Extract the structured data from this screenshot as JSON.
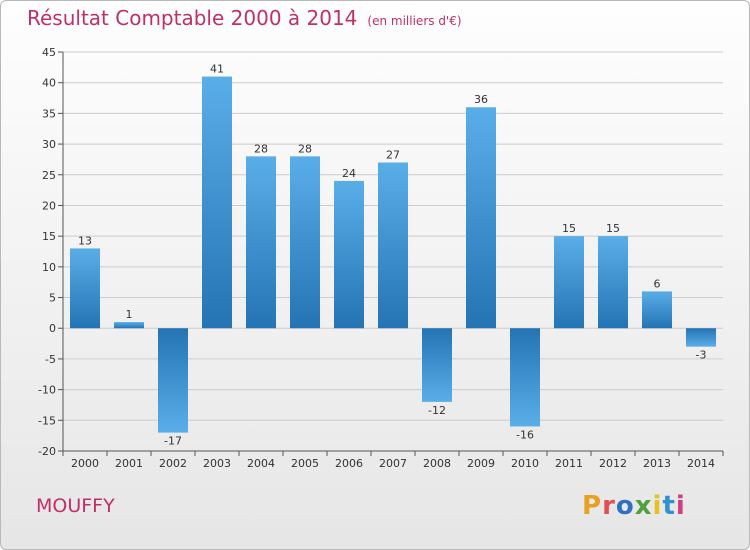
{
  "header": {
    "title": "Résultat Comptable 2000 à 2014",
    "unit": "(en milliers d'€)"
  },
  "footer": {
    "place": "MOUFFY",
    "logo_text": "Proxiti",
    "logo_colors": [
      "#e8a020",
      "#e05050",
      "#3070c0",
      "#50a040",
      "#e8c020",
      "#3090d0",
      "#d04080"
    ]
  },
  "colors": {
    "bar_light": "#5aaee8",
    "bar_dark": "#2474b4",
    "grid": "#cccccc",
    "title": "#c03068"
  },
  "chart_data": {
    "type": "bar",
    "categories": [
      "2000",
      "2001",
      "2002",
      "2003",
      "2004",
      "2005",
      "2006",
      "2007",
      "2008",
      "2009",
      "2010",
      "2011",
      "2012",
      "2013",
      "2014"
    ],
    "values": [
      13,
      1,
      -17,
      41,
      28,
      28,
      24,
      27,
      -12,
      36,
      -16,
      15,
      15,
      6,
      -3
    ],
    "ylim": [
      -20,
      45
    ],
    "yticks": [
      -20,
      -15,
      -10,
      -5,
      0,
      5,
      10,
      15,
      20,
      25,
      30,
      35,
      40,
      45
    ],
    "grid": true,
    "xlabel": "",
    "ylabel": ""
  }
}
